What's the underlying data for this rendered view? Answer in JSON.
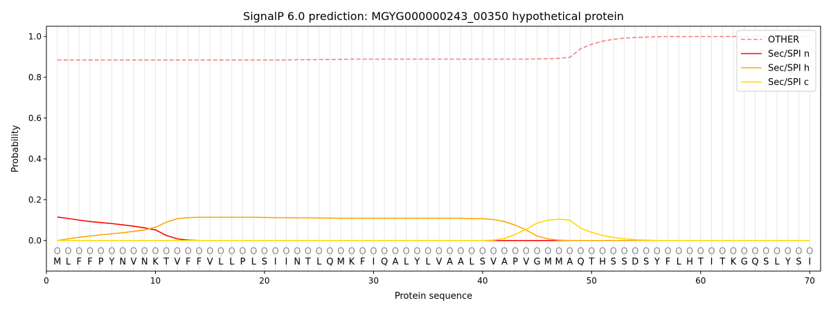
{
  "chart_data": {
    "type": "line",
    "title": "SignalP 6.0 prediction: MGYG000000243_00350 hypothetical protein",
    "xlabel": "Protein sequence",
    "ylabel": "Probability",
    "xlim": [
      0,
      71
    ],
    "ylim": [
      -0.15,
      1.05
    ],
    "xticks": [
      0,
      10,
      20,
      30,
      40,
      50,
      60,
      70
    ],
    "yticks": [
      0.0,
      0.2,
      0.4,
      0.6,
      0.8,
      1.0
    ],
    "ytick_labels": [
      "0.0",
      "0.2",
      "0.4",
      "0.6",
      "0.8",
      "1.0"
    ],
    "legend_position": "top-right",
    "sequence": "MLFFPYNVNKTVFFVLLPLSIINTLQMKFIQALYLVAALSVAPVGMMAQTHSSDSYFLHTITKGQSLYSI",
    "region_labels": "OOOOOOOOOOOOOOOOOOOOOOOOOOOOOOOOOOOOOOOOOOOOOOOOOOOOOOOOOOOOOOOOOOOOOO",
    "series": [
      {
        "name": "OTHER",
        "color": "#f08080",
        "dashed": true,
        "values": [
          0.885,
          0.885,
          0.885,
          0.885,
          0.885,
          0.885,
          0.885,
          0.885,
          0.885,
          0.885,
          0.885,
          0.885,
          0.885,
          0.885,
          0.885,
          0.885,
          0.885,
          0.885,
          0.885,
          0.885,
          0.885,
          0.885,
          0.886,
          0.886,
          0.887,
          0.887,
          0.888,
          0.889,
          0.889,
          0.889,
          0.889,
          0.889,
          0.889,
          0.889,
          0.889,
          0.889,
          0.889,
          0.889,
          0.889,
          0.889,
          0.889,
          0.889,
          0.889,
          0.889,
          0.89,
          0.891,
          0.893,
          0.898,
          0.94,
          0.962,
          0.977,
          0.986,
          0.992,
          0.995,
          0.997,
          0.999,
          1.0,
          1.0,
          1.0,
          1.0,
          1.0,
          1.0,
          1.0,
          1.0,
          1.0,
          1.0,
          1.0,
          1.0,
          1.0,
          1.0
        ]
      },
      {
        "name": "Sec/SPI n",
        "color": "#ff0000",
        "dashed": false,
        "values": [
          0.115,
          0.108,
          0.1,
          0.093,
          0.088,
          0.083,
          0.077,
          0.07,
          0.062,
          0.052,
          0.025,
          0.008,
          0.002,
          0,
          0,
          0,
          0,
          0,
          0,
          0,
          0,
          0,
          0,
          0,
          0,
          0,
          0,
          0,
          0,
          0,
          0,
          0,
          0,
          0,
          0,
          0,
          0,
          0,
          0,
          0,
          0,
          0,
          0,
          0,
          0,
          0,
          0,
          0,
          0,
          0,
          0,
          0,
          0,
          0,
          0,
          0,
          0,
          0,
          0,
          0,
          0,
          0,
          0,
          0,
          0,
          0,
          0,
          0,
          0,
          0
        ]
      },
      {
        "name": "Sec/SPI h",
        "color": "#ffa500",
        "dashed": false,
        "values": [
          0.0,
          0.008,
          0.016,
          0.022,
          0.028,
          0.033,
          0.038,
          0.045,
          0.052,
          0.065,
          0.09,
          0.107,
          0.112,
          0.114,
          0.114,
          0.114,
          0.114,
          0.114,
          0.114,
          0.113,
          0.112,
          0.112,
          0.111,
          0.111,
          0.11,
          0.11,
          0.109,
          0.109,
          0.109,
          0.109,
          0.109,
          0.109,
          0.109,
          0.109,
          0.109,
          0.109,
          0.109,
          0.109,
          0.108,
          0.107,
          0.103,
          0.093,
          0.075,
          0.052,
          0.022,
          0.008,
          0.002,
          0,
          0,
          0,
          0,
          0,
          0,
          0,
          0,
          0,
          0,
          0,
          0,
          0,
          0,
          0,
          0,
          0,
          0,
          0,
          0,
          0,
          0,
          0
        ]
      },
      {
        "name": "Sec/SPI c",
        "color": "#ffd700",
        "dashed": false,
        "values": [
          0,
          0,
          0,
          0,
          0,
          0,
          0,
          0,
          0,
          0,
          0,
          0,
          0,
          0,
          0,
          0,
          0,
          0,
          0,
          0,
          0,
          0,
          0,
          0,
          0,
          0,
          0,
          0,
          0,
          0,
          0,
          0,
          0,
          0,
          0,
          0,
          0,
          0,
          0,
          0,
          0.002,
          0.01,
          0.03,
          0.055,
          0.085,
          0.1,
          0.104,
          0.1,
          0.06,
          0.04,
          0.025,
          0.015,
          0.008,
          0.004,
          0.002,
          0,
          0,
          0,
          0,
          0,
          0,
          0,
          0,
          0,
          0,
          0,
          0,
          0,
          0,
          0
        ]
      }
    ]
  }
}
